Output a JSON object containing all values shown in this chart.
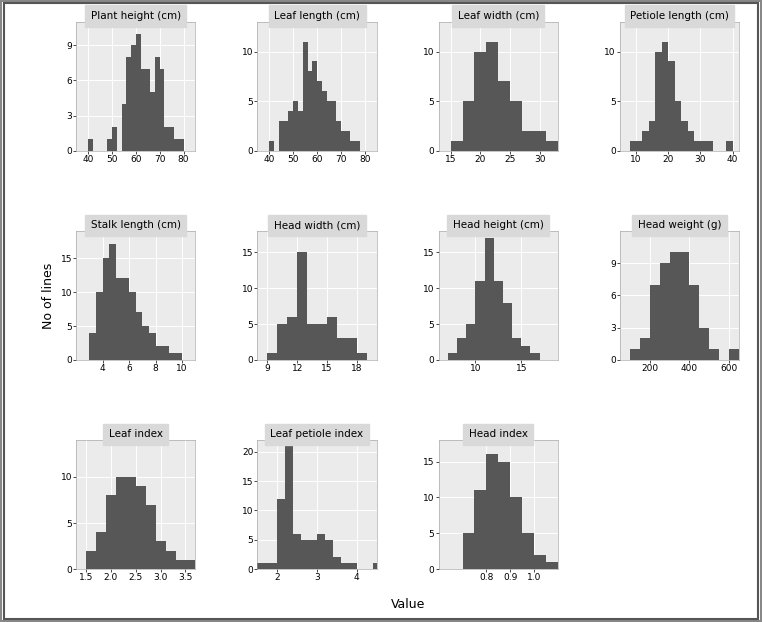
{
  "panels": [
    {
      "title": "Plant height (cm)",
      "xlim": [
        35,
        85
      ],
      "xticks": [
        40,
        50,
        60,
        70,
        80
      ],
      "ylim": [
        0,
        11
      ],
      "yticks": [
        0,
        3,
        6,
        9
      ],
      "bin_edges": [
        35,
        40,
        42,
        44,
        46,
        48,
        50,
        52,
        54,
        56,
        58,
        60,
        62,
        64,
        66,
        68,
        70,
        72,
        74,
        76,
        78,
        80,
        82,
        85
      ],
      "counts": [
        0,
        1,
        0,
        0,
        0,
        1,
        2,
        0,
        4,
        8,
        9,
        10,
        7,
        7,
        5,
        8,
        7,
        2,
        2,
        1,
        1,
        0,
        0
      ]
    },
    {
      "title": "Leaf length (cm)",
      "xlim": [
        35,
        85
      ],
      "xticks": [
        40,
        50,
        60,
        70,
        80
      ],
      "ylim": [
        0,
        13
      ],
      "yticks": [
        0,
        5,
        10
      ],
      "bin_edges": [
        35,
        40,
        42,
        44,
        46,
        48,
        50,
        52,
        54,
        56,
        58,
        60,
        62,
        64,
        66,
        68,
        70,
        72,
        74,
        76,
        78,
        80,
        82,
        85
      ],
      "counts": [
        0,
        1,
        0,
        3,
        3,
        4,
        5,
        4,
        11,
        8,
        9,
        7,
        6,
        5,
        5,
        3,
        2,
        2,
        1,
        1,
        0,
        0,
        0
      ]
    },
    {
      "title": "Leaf width (cm)",
      "xlim": [
        13,
        33
      ],
      "xticks": [
        15,
        20,
        25,
        30
      ],
      "ylim": [
        0,
        13
      ],
      "yticks": [
        0,
        5,
        10
      ],
      "bin_edges": [
        13,
        15,
        17,
        19,
        21,
        23,
        25,
        27,
        29,
        31,
        33
      ],
      "counts": [
        0,
        1,
        5,
        10,
        11,
        7,
        5,
        2,
        2,
        1
      ]
    },
    {
      "title": "Petiole length (cm)",
      "xlim": [
        5,
        42
      ],
      "xticks": [
        10,
        20,
        30,
        40
      ],
      "ylim": [
        0,
        13
      ],
      "yticks": [
        0,
        5,
        10
      ],
      "bin_edges": [
        5,
        8,
        10,
        12,
        14,
        16,
        18,
        20,
        22,
        24,
        26,
        28,
        30,
        32,
        34,
        36,
        38,
        40,
        42
      ],
      "counts": [
        0,
        1,
        1,
        2,
        3,
        10,
        11,
        9,
        5,
        3,
        2,
        1,
        1,
        1,
        0,
        0,
        1,
        0
      ]
    },
    {
      "title": "Stalk length (cm)",
      "xlim": [
        2,
        11
      ],
      "xticks": [
        4,
        6,
        8,
        10
      ],
      "ylim": [
        0,
        19
      ],
      "yticks": [
        0,
        5,
        10,
        15
      ],
      "bin_edges": [
        2,
        3,
        3.5,
        4,
        4.5,
        5,
        5.5,
        6,
        6.5,
        7,
        7.5,
        8,
        8.5,
        9,
        9.5,
        10,
        10.5,
        11
      ],
      "counts": [
        0,
        4,
        10,
        15,
        17,
        12,
        12,
        10,
        7,
        5,
        4,
        2,
        2,
        1,
        1,
        0,
        0
      ]
    },
    {
      "title": "Head width (cm)",
      "xlim": [
        8,
        20
      ],
      "xticks": [
        9,
        12,
        15,
        18
      ],
      "ylim": [
        0,
        18
      ],
      "yticks": [
        0,
        5,
        10,
        15
      ],
      "bin_edges": [
        8,
        9,
        10,
        11,
        12,
        13,
        14,
        15,
        16,
        17,
        18,
        19,
        20
      ],
      "counts": [
        0,
        1,
        5,
        6,
        15,
        5,
        5,
        6,
        3,
        3,
        1,
        0
      ]
    },
    {
      "title": "Head height (cm)",
      "xlim": [
        6,
        19
      ],
      "xticks": [
        10,
        15
      ],
      "ylim": [
        0,
        18
      ],
      "yticks": [
        0,
        5,
        10,
        15
      ],
      "bin_edges": [
        6,
        7,
        8,
        9,
        10,
        11,
        12,
        13,
        14,
        15,
        16,
        17,
        18,
        19
      ],
      "counts": [
        0,
        1,
        3,
        5,
        11,
        17,
        11,
        8,
        3,
        2,
        1,
        0,
        0
      ]
    },
    {
      "title": "Head weight (g)",
      "xlim": [
        50,
        650
      ],
      "xticks": [
        200,
        400,
        600
      ],
      "ylim": [
        0,
        12
      ],
      "yticks": [
        0,
        3,
        6,
        9
      ],
      "bin_edges": [
        50,
        100,
        150,
        200,
        250,
        300,
        350,
        400,
        450,
        500,
        550,
        600,
        650
      ],
      "counts": [
        0,
        1,
        2,
        7,
        9,
        10,
        10,
        7,
        3,
        1,
        0,
        1
      ]
    },
    {
      "title": "Leaf index",
      "xlim": [
        1.3,
        3.7
      ],
      "xticks": [
        1.5,
        2.0,
        2.5,
        3.0,
        3.5
      ],
      "ylim": [
        0,
        14
      ],
      "yticks": [
        0,
        5,
        10
      ],
      "bin_edges": [
        1.3,
        1.5,
        1.7,
        1.9,
        2.1,
        2.3,
        2.5,
        2.7,
        2.9,
        3.1,
        3.3,
        3.5,
        3.7
      ],
      "counts": [
        0,
        2,
        4,
        8,
        10,
        10,
        9,
        7,
        3,
        2,
        1,
        1
      ]
    },
    {
      "title": "Leaf petiole index",
      "xlim": [
        1.5,
        4.5
      ],
      "xticks": [
        2,
        3,
        4
      ],
      "ylim": [
        0,
        22
      ],
      "yticks": [
        0,
        5,
        10,
        15,
        20
      ],
      "bin_edges": [
        1.5,
        1.8,
        2.0,
        2.2,
        2.4,
        2.6,
        2.8,
        3.0,
        3.2,
        3.4,
        3.6,
        3.8,
        4.0,
        4.2,
        4.4,
        4.6
      ],
      "counts": [
        1,
        1,
        12,
        21,
        6,
        5,
        5,
        6,
        5,
        2,
        1,
        1,
        0,
        0,
        1
      ]
    },
    {
      "title": "Head index",
      "xlim": [
        0.6,
        1.1
      ],
      "xticks": [
        0.8,
        0.9,
        1.0
      ],
      "ylim": [
        0,
        18
      ],
      "yticks": [
        0,
        5,
        10,
        15
      ],
      "bin_edges": [
        0.6,
        0.65,
        0.7,
        0.75,
        0.8,
        0.85,
        0.9,
        0.95,
        1.0,
        1.05,
        1.1
      ],
      "counts": [
        0,
        0,
        5,
        11,
        16,
        15,
        10,
        5,
        2,
        1
      ]
    }
  ],
  "bar_color": "#575757",
  "bg_color": "#ebebeb",
  "grid_color": "#ffffff",
  "title_bg_color": "#d9d9d9",
  "ylabel": "No of lines",
  "xlabel": "Value",
  "title_fontsize": 7.5,
  "tick_fontsize": 6.5,
  "label_fontsize": 9,
  "fig_border_color": "#888888",
  "outer_bg": "#f5f5f5"
}
